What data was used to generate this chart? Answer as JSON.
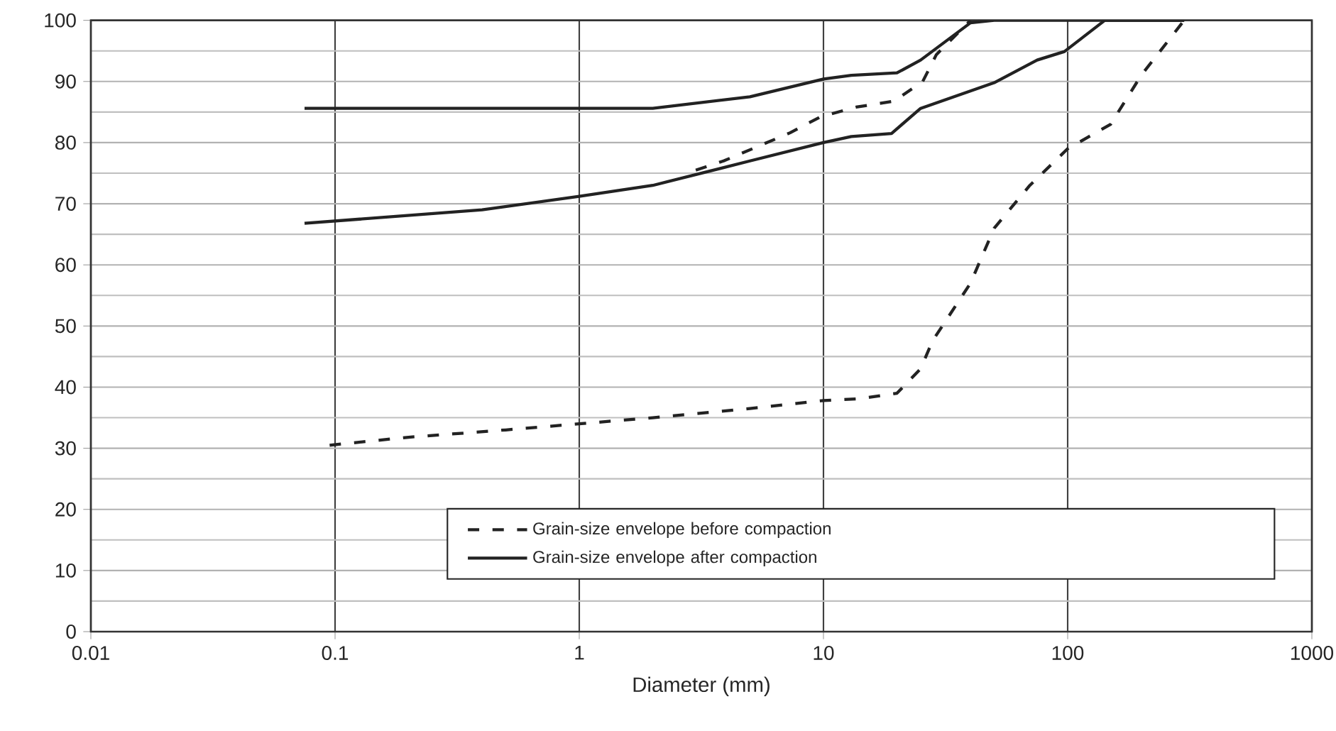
{
  "chart_data": {
    "type": "line",
    "xlabel": "Diameter (mm)",
    "log": "x",
    "grid": true,
    "legend": "bottom right",
    "xlim": [
      0.01,
      1000
    ],
    "xticks": [
      0.01,
      0.1,
      1,
      10,
      100,
      1000
    ],
    "ylim": [
      0,
      100
    ],
    "yticks": [
      0,
      10,
      20,
      30,
      40,
      50,
      60,
      70,
      80,
      90,
      100
    ],
    "series": [
      {
        "name": "Grain-size envelope before compaction",
        "color": "#222222",
        "line_style": "dashed",
        "x": [
          0.095,
          0.2,
          0.5,
          1,
          2,
          5,
          10,
          14,
          20,
          25,
          28,
          40,
          50,
          70,
          100,
          150,
          200,
          300
        ],
        "values": [
          30.5,
          31.8,
          33,
          34,
          35,
          36.5,
          37.8,
          38.1,
          39,
          43,
          47.6,
          57,
          66,
          73,
          79,
          83,
          91,
          100
        ]
      },
      {
        "color": "#222222",
        "line_style": "dashed",
        "x": [
          3,
          3.9,
          7.3,
          9.7,
          13.6,
          19.5,
          25.5,
          29,
          40
        ],
        "values": [
          75.5,
          77,
          81.6,
          84.2,
          85.8,
          86.8,
          90,
          94.4,
          100
        ]
      },
      {
        "name": "Grain-size envelope after compaction",
        "color": "#222222",
        "line_style": "solid",
        "x": [
          0.075,
          2,
          5,
          10,
          13,
          20,
          25,
          40,
          50,
          100,
          300
        ],
        "values": [
          85.6,
          85.6,
          87.5,
          90.4,
          91,
          91.4,
          93.5,
          99.6,
          100,
          100,
          100
        ]
      },
      {
        "color": "#222222",
        "line_style": "solid",
        "x": [
          0.075,
          0.4,
          1,
          2,
          5,
          10,
          13,
          19,
          25,
          50,
          75,
          97,
          142,
          300
        ],
        "values": [
          66.8,
          69,
          71.2,
          73,
          77,
          80,
          81,
          81.5,
          85.6,
          89.8,
          93.5,
          94.9,
          100,
          100
        ]
      }
    ]
  }
}
